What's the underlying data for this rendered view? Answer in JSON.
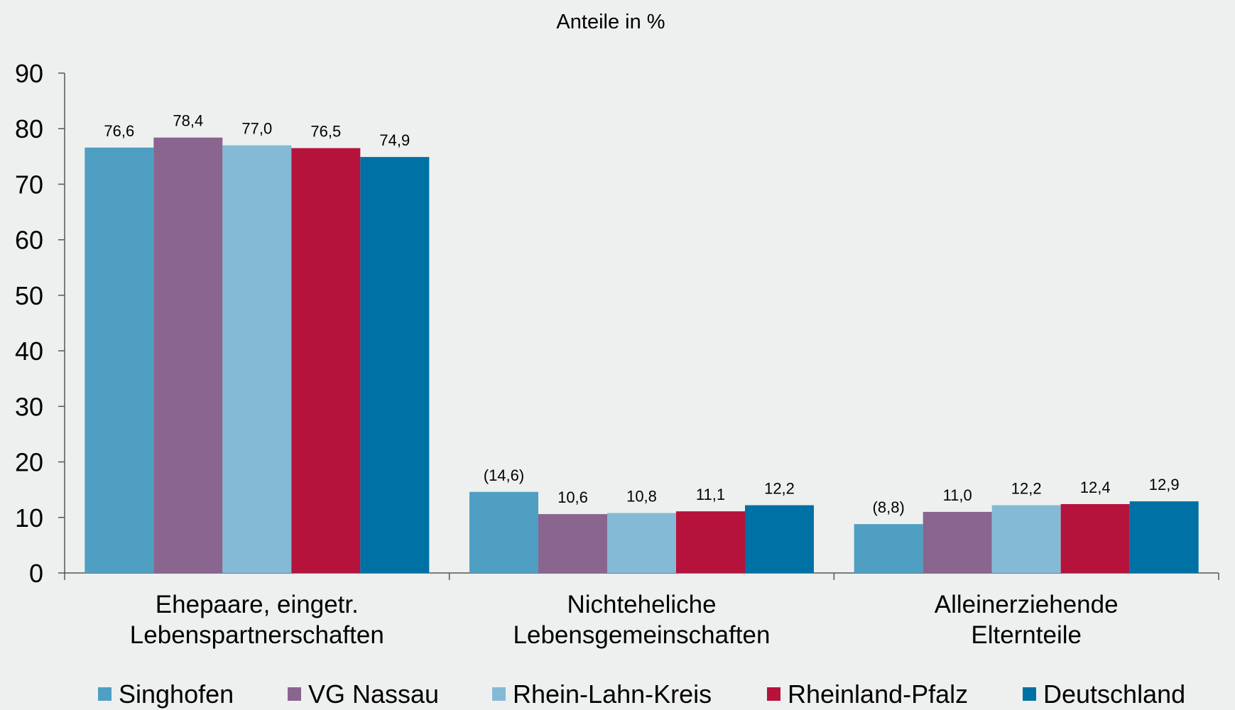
{
  "chart_data": {
    "type": "bar",
    "title": "Anteile in %",
    "xlabel": "",
    "ylabel": "",
    "ylim": [
      0,
      90
    ],
    "yticks": [
      0,
      10,
      20,
      30,
      40,
      50,
      60,
      70,
      80,
      90
    ],
    "grid": false,
    "legend_position": "bottom",
    "categories": [
      [
        "Ehepaare, eingetr.",
        "Lebenspartnerschaften"
      ],
      [
        "Nichteheliche",
        "Lebensgemeinschaften"
      ],
      [
        "Alleinerziehende",
        "Elternteile"
      ]
    ],
    "series": [
      {
        "name": "Singhofen",
        "color": "#4f9fc2",
        "values": [
          76.6,
          14.6,
          8.8
        ],
        "labels": [
          "76,6",
          "(14,6)",
          "(8,8)"
        ]
      },
      {
        "name": "VG Nassau",
        "color": "#8a658f",
        "values": [
          78.4,
          10.6,
          11.0
        ],
        "labels": [
          "78,4",
          "10,6",
          "11,0"
        ]
      },
      {
        "name": "Rhein-Lahn-Kreis",
        "color": "#84bad5",
        "values": [
          77.0,
          10.8,
          12.2
        ],
        "labels": [
          "77,0",
          "10,8",
          "12,2"
        ]
      },
      {
        "name": "Rheinland-Pfalz",
        "color": "#b5133c",
        "values": [
          76.5,
          11.1,
          12.4
        ],
        "labels": [
          "76,5",
          "11,1",
          "12,4"
        ]
      },
      {
        "name": "Deutschland",
        "color": "#0071a4",
        "values": [
          74.9,
          12.2,
          12.9
        ],
        "labels": [
          "74,9",
          "12,2",
          "12,9"
        ]
      }
    ]
  }
}
